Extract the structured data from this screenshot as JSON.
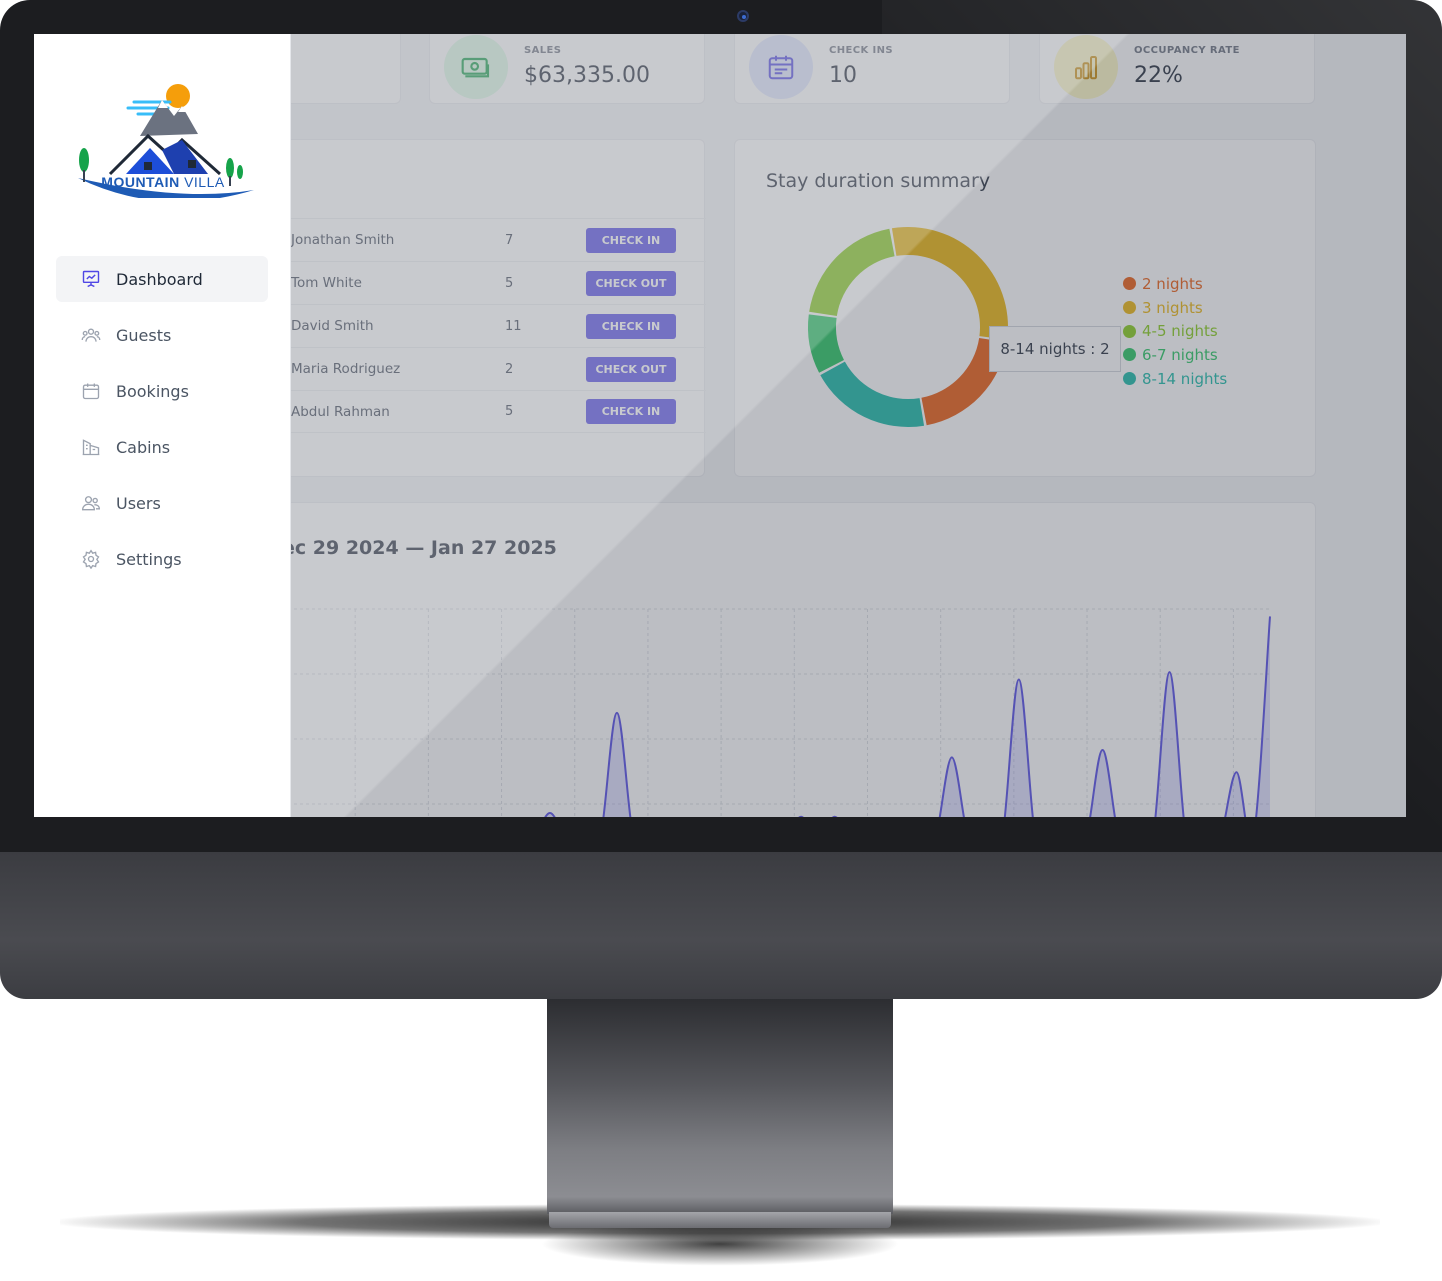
{
  "sidebar": {
    "logo": {
      "brand": "MOUNTAIN",
      "suffix": "VILLA"
    },
    "items": [
      {
        "label": "Dashboard",
        "icon": "chart-presentation-icon",
        "active": true
      },
      {
        "label": "Guests",
        "icon": "users-group-icon",
        "active": false
      },
      {
        "label": "Bookings",
        "icon": "calendar-icon",
        "active": false
      },
      {
        "label": "Cabins",
        "icon": "building-icon",
        "active": false
      },
      {
        "label": "Users",
        "icon": "users-icon",
        "active": false
      },
      {
        "label": "Settings",
        "icon": "gear-icon",
        "active": false
      }
    ]
  },
  "stats": [
    {
      "label": "SALES",
      "value": "$63,335.00",
      "icon": "banknote-icon",
      "color": "#16a34a"
    },
    {
      "label": "CHECK INS",
      "value": "10",
      "icon": "calendar-icon",
      "color": "#4f46e5"
    },
    {
      "label": "OCCUPANCY RATE",
      "value": "22%",
      "icon": "bar-chart-icon",
      "color": "#ca8a04"
    }
  ],
  "today": {
    "rows": [
      {
        "name": "Jonathan Smith",
        "nights": "7",
        "action": "CHECK IN"
      },
      {
        "name": "Tom White",
        "nights": "5",
        "action": "CHECK OUT"
      },
      {
        "name": "David Smith",
        "nights": "11",
        "action": "CHECK IN"
      },
      {
        "name": "Maria Rodriguez",
        "nights": "2",
        "action": "CHECK OUT"
      },
      {
        "name": "Abdul Rahman",
        "nights": "5",
        "action": "CHECK IN"
      }
    ]
  },
  "duration": {
    "title": "Stay duration summary",
    "tooltip": "8-14 nights : 2"
  },
  "sales": {
    "title": "ec 29 2024 — Jan 27 2025"
  },
  "chart_data": [
    {
      "type": "pie",
      "title": "Stay duration summary",
      "categories": [
        "2 nights",
        "3 nights",
        "4-5 nights",
        "6-7 nights",
        "8-14 nights"
      ],
      "values": [
        2,
        3,
        2,
        1,
        2
      ],
      "colors": [
        "#ea580c",
        "#eab308",
        "#84cc16",
        "#22c55e",
        "#14b8a6"
      ],
      "legend": "right"
    },
    {
      "type": "area",
      "title": "ec 29 2024 — Jan 27 2025",
      "series": [
        {
          "values": [
            0,
            0,
            0,
            0,
            0,
            0,
            0,
            0,
            0,
            0,
            0,
            0,
            0,
            0.3,
            0,
            0,
            0.7,
            0,
            0,
            0,
            3.4,
            0,
            0,
            0,
            0,
            0,
            0,
            0,
            0,
            0,
            0,
            0.6,
            0,
            0.6,
            0,
            0,
            0,
            0,
            0,
            0,
            2.2,
            0,
            0,
            0,
            4.3,
            0,
            0,
            0,
            0,
            2.4,
            0,
            0,
            0,
            4.5,
            0,
            0,
            0,
            1.8,
            0,
            6.0
          ]
        }
      ],
      "grid": true
    }
  ]
}
